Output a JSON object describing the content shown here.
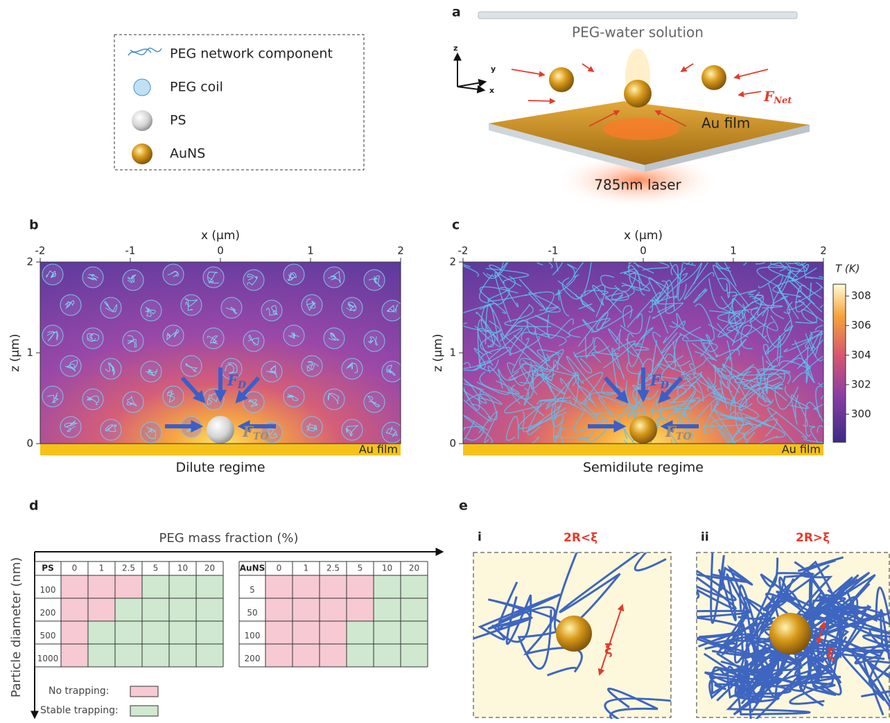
{
  "legend": {
    "items": [
      "PEG network component",
      "PEG coil",
      "PS",
      "AuNS"
    ]
  },
  "panel_a": {
    "label": "a",
    "solution": "PEG-water solution",
    "axes": [
      "z",
      "y",
      "x"
    ],
    "force": {
      "main": "F",
      "sub": "Net"
    },
    "film": "Au film",
    "laser": "785nm laser"
  },
  "panel_b": {
    "label": "b",
    "x_label": "x (μm)",
    "z_label": "z (μm)",
    "xlim": [
      -2,
      2
    ],
    "zlim": [
      0,
      2
    ],
    "xticks": [
      -2,
      -1,
      0,
      1,
      2
    ],
    "zticks": [
      0,
      1,
      2
    ],
    "force_d": {
      "main": "F",
      "sub": "D"
    },
    "force_to": {
      "main": "F",
      "sub": "TO"
    },
    "film": "Au film",
    "caption": "Dilute regime"
  },
  "panel_c": {
    "label": "c",
    "x_label": "x (μm)",
    "z_label": "z (μm)",
    "xlim": [
      -2,
      2
    ],
    "zlim": [
      0,
      2
    ],
    "xticks": [
      -2,
      -1,
      0,
      1,
      2
    ],
    "zticks": [
      0,
      1,
      2
    ],
    "force_d": {
      "main": "F",
      "sub": "D"
    },
    "force_to": {
      "main": "F",
      "sub": "TO"
    },
    "film": "Au film",
    "caption": "Semidilute regime",
    "colorbar": {
      "label": "T (K)",
      "lim": [
        298.1,
        308.8
      ],
      "ticks": [
        300,
        302,
        304,
        306,
        308
      ]
    }
  },
  "panel_d": {
    "label": "d",
    "x_label": "PEG mass fraction (%)",
    "y_label": "Particle diameter (nm)",
    "tables": [
      {
        "particle": "PS",
        "fractions": [
          0,
          1,
          2.5,
          5,
          10,
          20
        ],
        "rows": [
          {
            "diameter": 100,
            "stable": [
              false,
              false,
              false,
              true,
              true,
              true
            ]
          },
          {
            "diameter": 200,
            "stable": [
              false,
              false,
              true,
              true,
              true,
              true
            ]
          },
          {
            "diameter": 500,
            "stable": [
              false,
              true,
              true,
              true,
              true,
              true
            ]
          },
          {
            "diameter": 1000,
            "stable": [
              false,
              true,
              true,
              true,
              true,
              true
            ]
          }
        ]
      },
      {
        "particle": "AuNS",
        "fractions": [
          0,
          1,
          2.5,
          5,
          10,
          20
        ],
        "rows": [
          {
            "diameter": 5,
            "stable": [
              false,
              false,
              false,
              false,
              true,
              true
            ]
          },
          {
            "diameter": 50,
            "stable": [
              false,
              false,
              false,
              false,
              true,
              true
            ]
          },
          {
            "diameter": 100,
            "stable": [
              false,
              false,
              false,
              true,
              true,
              true
            ]
          },
          {
            "diameter": 200,
            "stable": [
              false,
              false,
              false,
              true,
              true,
              true
            ]
          }
        ]
      }
    ],
    "legend": {
      "no": "No trapping:",
      "stable": "Stable trapping:"
    }
  },
  "panel_e": {
    "label": "e",
    "cases": [
      {
        "label": "i",
        "condition": "2R<ξ",
        "mesh": "ξ"
      },
      {
        "label": "ii",
        "condition": "2R>ξ",
        "mesh": "ξ"
      }
    ]
  }
}
